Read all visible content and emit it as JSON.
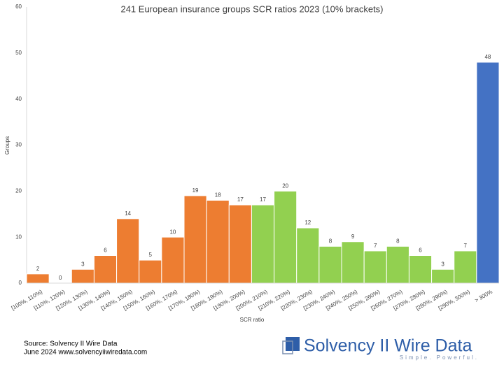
{
  "chart_data": {
    "type": "bar",
    "title": "241 European insurance groups SCR ratios 2023 (10% brackets)",
    "x_label": "SCR ratio",
    "y_label": "Groups",
    "categories": [
      "[100%, 110%)",
      "[110%, 120%)",
      "[120%, 130%)",
      "[130%, 140%)",
      "[140%, 150%)",
      "[150%, 160%)",
      "[160%, 170%)",
      "[170%, 180%)",
      "[180%, 190%)",
      "[190%, 200%)",
      "[200%, 210%)",
      "[210%, 220%)",
      "[220%, 230%)",
      "[230%, 240%)",
      "[240%, 250%)",
      "[250%, 260%)",
      "[260%, 270%)",
      "[270%, 280%)",
      "[280%, 290%)",
      "[290%, 300%)",
      "> 300%"
    ],
    "values": [
      2,
      0,
      3,
      6,
      14,
      5,
      10,
      19,
      18,
      17,
      17,
      20,
      12,
      8,
      9,
      7,
      8,
      6,
      3,
      7,
      48
    ],
    "colors": [
      "#ed7d31",
      "#ed7d31",
      "#ed7d31",
      "#ed7d31",
      "#ed7d31",
      "#ed7d31",
      "#ed7d31",
      "#ed7d31",
      "#ed7d31",
      "#ed7d31",
      "#92d050",
      "#92d050",
      "#92d050",
      "#92d050",
      "#92d050",
      "#92d050",
      "#92d050",
      "#92d050",
      "#92d050",
      "#92d050",
      "#4472c4"
    ],
    "ylim": [
      0,
      60
    ],
    "yticks": [
      0,
      10,
      20,
      30,
      40,
      50,
      60
    ],
    "grid": false
  },
  "source": [
    "Source: Solvency II Wire Data",
    "June 2024 www.solvencyiiwiredata.com"
  ],
  "logo": {
    "name": "Solvency II Wire Data",
    "tagline": "Simple. Powerful."
  }
}
